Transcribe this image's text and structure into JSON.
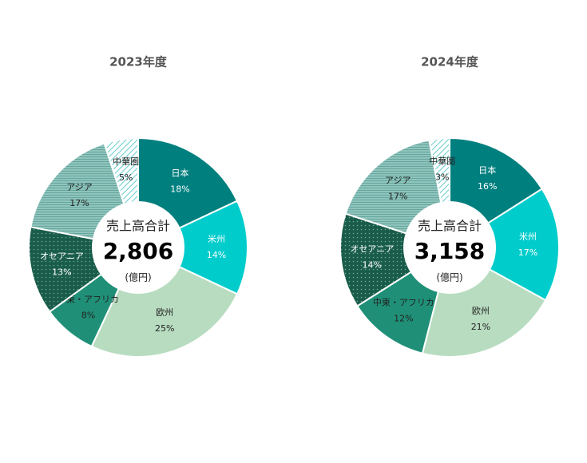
{
  "chart_data": [
    {
      "type": "donut",
      "title": "2023年度",
      "center_label": "売上高合計",
      "center_value": "2,806",
      "center_unit": "(億円)",
      "categories": [
        "日本",
        "米州",
        "欧州",
        "中東・アフリカ",
        "オセアニア",
        "アジア",
        "中華圏"
      ],
      "values": [
        18,
        14,
        25,
        8,
        13,
        17,
        5
      ],
      "value_labels": [
        "18%",
        "14%",
        "25%",
        "8%",
        "13%",
        "17%",
        "5%"
      ],
      "colors": [
        "#007f7f",
        "#00cccc",
        "#b8dcc0",
        "#1f9077",
        "#1a5c4a",
        "#8fc4bd",
        "#66cccc"
      ],
      "patterns": [
        "solid",
        "solid",
        "solid",
        "solid",
        "dots",
        "lines",
        "hatch"
      ]
    },
    {
      "type": "donut",
      "title": "2024年度",
      "center_label": "売上高合計",
      "center_value": "3,158",
      "center_unit": "(億円)",
      "categories": [
        "日本",
        "米州",
        "欧州",
        "中東・アフリカ",
        "オセアニア",
        "アジア",
        "中華圏"
      ],
      "values": [
        16,
        17,
        21,
        12,
        14,
        17,
        3
      ],
      "value_labels": [
        "16%",
        "17%",
        "21%",
        "12%",
        "14%",
        "17%",
        "3%"
      ],
      "colors": [
        "#007f7f",
        "#00cccc",
        "#b8dcc0",
        "#1f9077",
        "#1a5c4a",
        "#8fc4bd",
        "#66cccc"
      ],
      "patterns": [
        "solid",
        "solid",
        "solid",
        "solid",
        "dots",
        "lines",
        "hatch"
      ]
    }
  ]
}
